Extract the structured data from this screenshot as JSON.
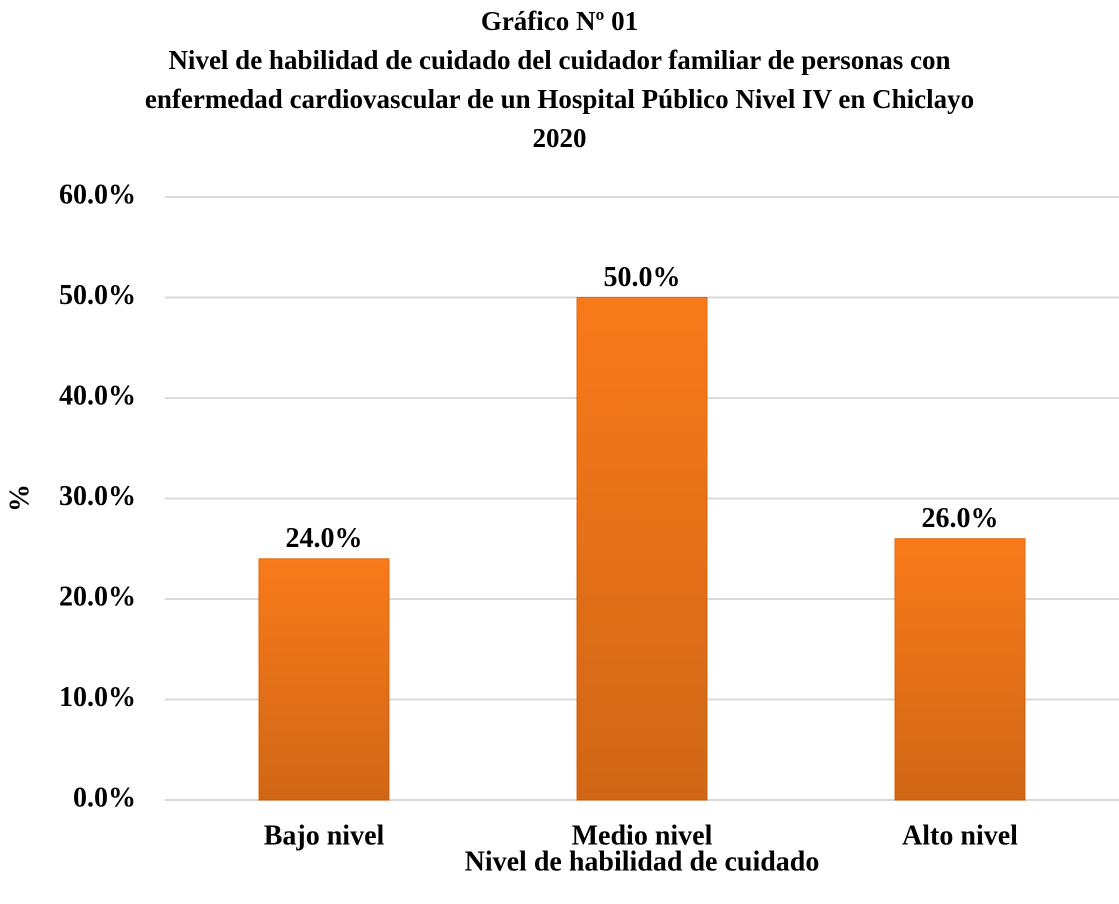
{
  "chart_data": {
    "type": "bar",
    "title": "Gráfico Nº 01",
    "subtitle": "Nivel de habilidad de cuidado del cuidador familiar de personas con enfermedad cardiovascular de un Hospital Público Nivel IV en Chiclayo 2020",
    "x_label": "Nivel de habilidad de cuidado",
    "y_label": "%",
    "categories": [
      "Bajo nivel",
      "Medio nivel",
      "Alto nivel"
    ],
    "values": [
      24,
      50,
      26
    ],
    "value_labels": [
      "24.0%",
      "50.0%",
      "26.0%"
    ],
    "color": "#f87a1a",
    "ylim": [
      0,
      60
    ],
    "yticks": [
      {
        "value": 0,
        "label": "0.0%"
      },
      {
        "value": 10,
        "label": "10.0%"
      },
      {
        "value": 20,
        "label": "20.0%"
      },
      {
        "value": 30,
        "label": "30.0%"
      },
      {
        "value": 40,
        "label": "40.0%"
      },
      {
        "value": 50,
        "label": "50.0%"
      },
      {
        "value": 60,
        "label": "60.0%"
      }
    ],
    "grid": true
  }
}
